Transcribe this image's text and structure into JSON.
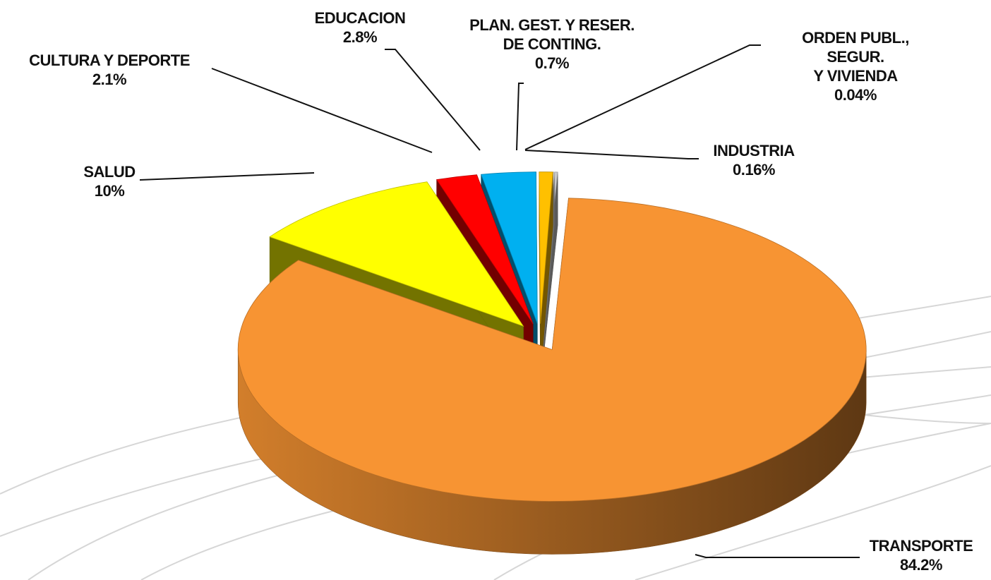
{
  "chart_data": {
    "type": "pie",
    "categories": [
      "TRANSPORTE",
      "SALUD",
      "CULTURA Y DEPORTE",
      "EDUCACION",
      "PLAN. GEST. Y RESER.\nDE CONTING.",
      "ORDEN PUBL., SEGUR.\nY   VIVIENDA",
      "INDUSTRIA"
    ],
    "values": [
      84.2,
      10,
      2.1,
      2.8,
      0.7,
      0.04,
      0.16
    ],
    "value_labels": [
      "84.2%",
      "10%",
      "2.1%",
      "2.8%",
      "0.7%",
      "0.04%",
      "0.16%"
    ],
    "colors": [
      "#f79433",
      "#ffff00",
      "#ff0000",
      "#00b0f0",
      "#ffc000",
      "#f2f2f2",
      "#c8c8c8"
    ]
  }
}
